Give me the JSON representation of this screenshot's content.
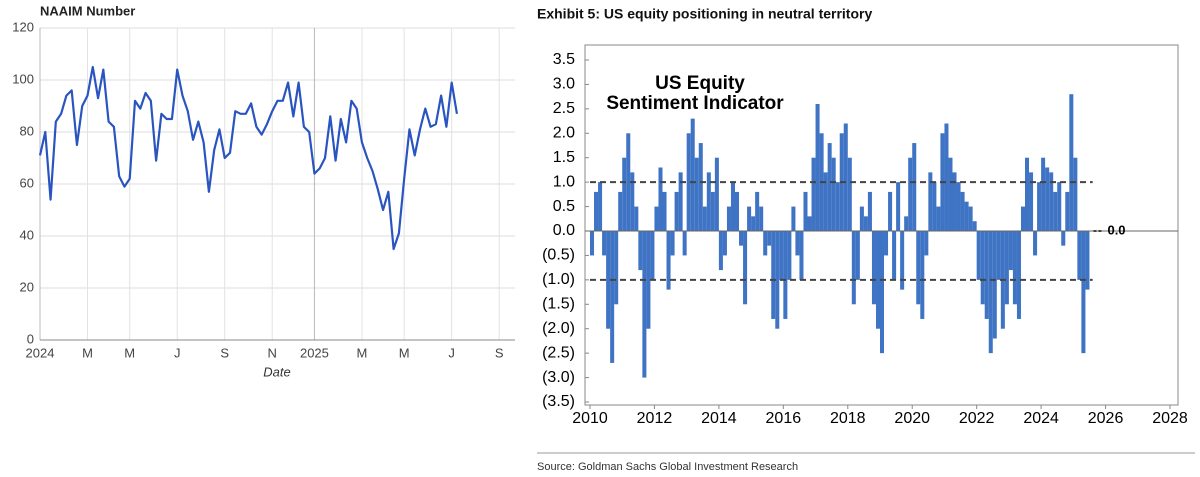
{
  "chart_data": [
    {
      "type": "line",
      "title": "NAAIM Number",
      "x_label": "Date",
      "color": "#2a55c0",
      "grid": true,
      "categories": [
        "2024",
        null,
        null,
        null,
        null,
        null,
        null,
        null,
        null,
        "M",
        null,
        null,
        null,
        null,
        null,
        null,
        null,
        "M",
        null,
        null,
        null,
        null,
        null,
        null,
        null,
        null,
        "J",
        null,
        null,
        null,
        null,
        null,
        null,
        null,
        null,
        "S",
        null,
        null,
        null,
        null,
        null,
        null,
        null,
        null,
        "N",
        null,
        null,
        null,
        null,
        null,
        null,
        null,
        "2025",
        null,
        null,
        null,
        null,
        null,
        null,
        null,
        null,
        "M",
        null,
        null,
        null,
        null,
        null,
        null,
        null,
        "M",
        null,
        null,
        null,
        null,
        null,
        null,
        null,
        null,
        "J",
        null,
        null,
        null,
        null,
        null,
        null,
        null,
        null,
        "S",
        null,
        null
      ],
      "values": [
        71,
        80,
        54,
        84,
        87,
        94,
        96,
        75,
        90,
        94,
        105,
        93,
        104,
        84,
        82,
        63,
        59,
        62,
        92,
        89,
        95,
        92,
        69,
        87,
        85,
        85,
        104,
        94,
        88,
        77,
        84,
        76,
        57,
        73,
        81,
        70,
        72,
        88,
        87,
        87,
        91,
        82,
        79,
        83,
        88,
        92,
        92,
        99,
        86,
        99,
        82,
        80,
        64,
        66,
        70,
        86,
        69,
        85,
        76,
        92,
        89,
        76,
        70,
        65,
        58,
        50,
        57,
        35,
        41,
        62,
        81,
        71,
        81,
        89,
        82,
        83,
        94,
        82,
        99,
        87,
        null,
        null,
        null,
        null,
        null,
        null,
        null,
        null,
        null,
        null
      ],
      "ylim": [
        0,
        120
      ],
      "yticks": [
        0,
        20,
        40,
        60,
        80,
        100,
        120
      ]
    },
    {
      "type": "bar",
      "title": "Exhibit 5: US equity positioning in neutral territory",
      "annotation": [
        "US Equity",
        "Sentiment Indicator"
      ],
      "source": "Source: Goldman Sachs Global Investment Research",
      "color": "#3f73c4",
      "x": [
        2010,
        2010.125,
        2010.25,
        2010.375,
        2010.5,
        2010.625,
        2010.75,
        2010.875,
        2011,
        2011.125,
        2011.25,
        2011.375,
        2011.5,
        2011.625,
        2011.75,
        2011.875,
        2012,
        2012.125,
        2012.25,
        2012.375,
        2012.5,
        2012.625,
        2012.75,
        2012.875,
        2013,
        2013.125,
        2013.25,
        2013.375,
        2013.5,
        2013.625,
        2013.75,
        2013.875,
        2014,
        2014.125,
        2014.25,
        2014.375,
        2014.5,
        2014.625,
        2014.75,
        2014.875,
        2015,
        2015.125,
        2015.25,
        2015.375,
        2015.5,
        2015.625,
        2015.75,
        2015.875,
        2016,
        2016.125,
        2016.25,
        2016.375,
        2016.5,
        2016.625,
        2016.75,
        2016.875,
        2017,
        2017.125,
        2017.25,
        2017.375,
        2017.5,
        2017.625,
        2017.75,
        2017.875,
        2018,
        2018.125,
        2018.25,
        2018.375,
        2018.5,
        2018.625,
        2018.75,
        2018.875,
        2019,
        2019.125,
        2019.25,
        2019.375,
        2019.5,
        2019.625,
        2019.75,
        2019.875,
        2020,
        2020.125,
        2020.25,
        2020.375,
        2020.5,
        2020.625,
        2020.75,
        2020.875,
        2021,
        2021.125,
        2021.25,
        2021.375,
        2021.5,
        2021.625,
        2021.75,
        2021.875,
        2022,
        2022.125,
        2022.25,
        2022.375,
        2022.5,
        2022.625,
        2022.75,
        2022.875,
        2023,
        2023.125,
        2023.25,
        2023.375,
        2023.5,
        2023.625,
        2023.75,
        2023.875,
        2024,
        2024.125,
        2024.25,
        2024.375,
        2024.5,
        2024.625,
        2024.75,
        2024.875,
        2025,
        2025.125,
        2025.25,
        2025.375,
        2025.5
      ],
      "values": [
        -0.5,
        0.8,
        1.0,
        -0.5,
        -2.0,
        -2.7,
        -1.5,
        0.8,
        1.5,
        2.0,
        1.2,
        0.5,
        -0.8,
        -3.0,
        -2.0,
        -1.0,
        0.5,
        1.3,
        0.8,
        -1.2,
        -0.5,
        0.8,
        1.2,
        -0.5,
        2.0,
        2.3,
        1.5,
        1.8,
        0.5,
        1.2,
        0.8,
        1.5,
        -0.8,
        -0.5,
        0.5,
        1.0,
        0.8,
        -0.3,
        -1.5,
        0.5,
        0.3,
        0.8,
        0.5,
        -0.5,
        -0.3,
        -1.8,
        -2.0,
        -1.0,
        -1.8,
        -1.0,
        0.5,
        -0.5,
        -1.0,
        0.8,
        0.3,
        1.5,
        2.6,
        2.0,
        1.2,
        1.8,
        1.5,
        1.0,
        2.0,
        2.2,
        1.5,
        -1.5,
        -1.0,
        0.5,
        0.3,
        0.8,
        -1.5,
        -2.0,
        -2.5,
        -0.5,
        0.8,
        -1.0,
        1.0,
        -1.2,
        0.3,
        1.5,
        1.8,
        -1.5,
        -1.8,
        -0.5,
        1.2,
        1.0,
        0.5,
        2.0,
        2.2,
        1.5,
        1.2,
        1.0,
        0.8,
        0.6,
        0.5,
        0.2,
        -1.0,
        -1.5,
        -1.8,
        -2.5,
        -2.2,
        -1.0,
        -2.0,
        -1.5,
        -0.8,
        -1.5,
        -1.8,
        0.5,
        1.5,
        1.2,
        -0.5,
        1.0,
        1.5,
        1.3,
        1.2,
        0.8,
        1.0,
        -0.3,
        0.8,
        2.8,
        1.5,
        -1.0,
        -2.5,
        -1.2,
        0.0
      ],
      "reference_lines": [
        1,
        -1
      ],
      "latest_label": {
        "value": 0,
        "label": "0.0"
      },
      "xlim": [
        2010,
        2028
      ],
      "xticks": [
        2010,
        2012,
        2014,
        2016,
        2018,
        2020,
        2022,
        2024,
        2026,
        2028
      ],
      "ylim": [
        -3.5,
        3.5
      ],
      "yticks": [
        {
          "value": -3.5,
          "label": "(3.5)"
        },
        {
          "value": -3,
          "label": "(3.0)"
        },
        {
          "value": -2.5,
          "label": "(2.5)"
        },
        {
          "value": -2,
          "label": "(2.0)"
        },
        {
          "value": -1.5,
          "label": "(1.5)"
        },
        {
          "value": -1,
          "label": "(1.0)"
        },
        {
          "value": -0.5,
          "label": "(0.5)"
        },
        {
          "value": 0,
          "label": "0.0"
        },
        0.5,
        {
          "value": 1,
          "label": "1.0"
        },
        1.5,
        {
          "value": 2,
          "label": "2.0"
        },
        2.5,
        {
          "value": 3,
          "label": "3.0"
        },
        3.5
      ]
    }
  ]
}
